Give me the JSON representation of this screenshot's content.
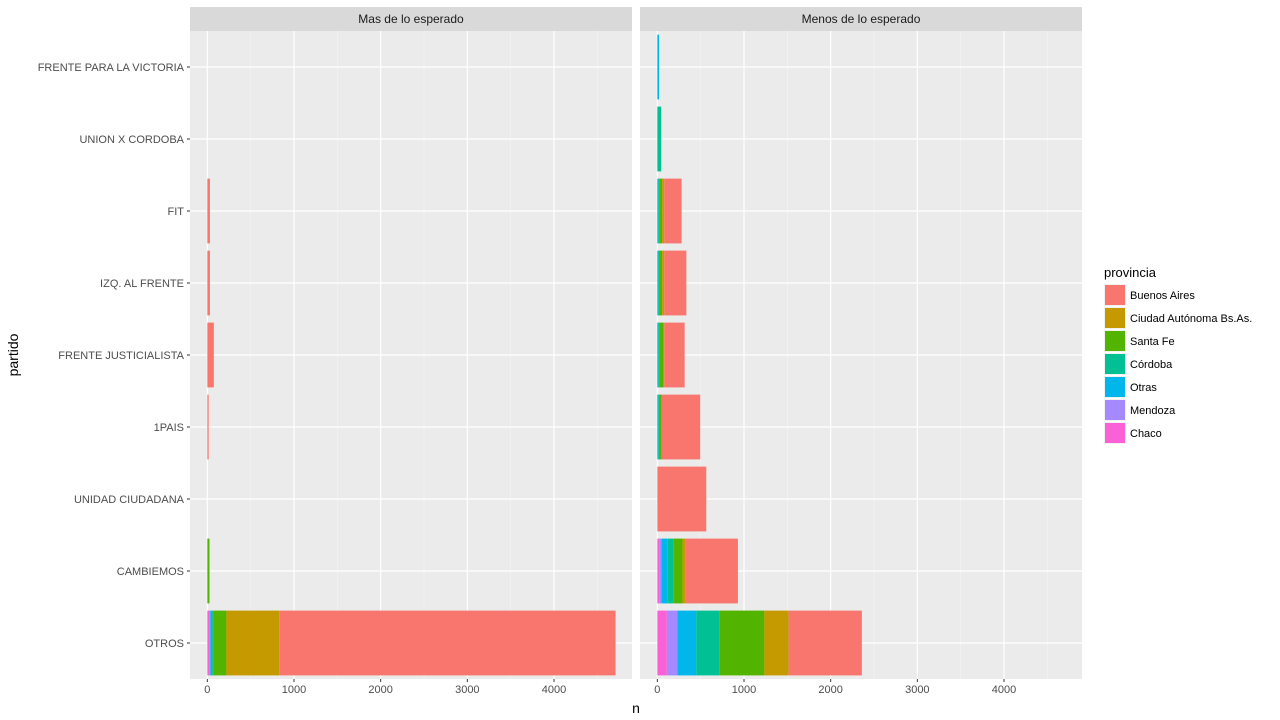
{
  "chart_data": {
    "type": "bar",
    "orientation": "horizontal",
    "stacked": true,
    "xlabel": "n",
    "ylabel": "partido",
    "xlim": [
      -200,
      4900
    ],
    "xticks": [
      0,
      1000,
      2000,
      3000,
      4000
    ],
    "grid": true,
    "legend": {
      "title": "provincia",
      "position": "right"
    },
    "categories": [
      "FRENTE PARA LA VICTORIA",
      "UNION X CORDOBA",
      "FIT",
      "IZQ. AL FRENTE",
      "FRENTE JUSTICIALISTA",
      "1PAIS",
      "UNIDAD CIUDADANA",
      "CAMBIEMOS",
      "OTROS"
    ],
    "series_names": [
      "Buenos Aires",
      "Ciudad Autónoma Bs.As.",
      "Santa Fe",
      "Córdoba",
      "Otras",
      "Mendoza",
      "Chaco"
    ],
    "colors": {
      "Buenos Aires": "#F8766D",
      "Ciudad Autónoma Bs.As.": "#C49A00",
      "Santa Fe": "#53B400",
      "Córdoba": "#00C094",
      "Otras": "#00B6EB",
      "Mendoza": "#A58AFF",
      "Chaco": "#FB61D7"
    },
    "panels": [
      {
        "name": "Mas de lo esperado",
        "stacks": {
          "FRENTE PARA LA VICTORIA": {},
          "UNION X CORDOBA": {},
          "FIT": {
            "Buenos Aires": 30
          },
          "IZQ. AL FRENTE": {
            "Buenos Aires": 30
          },
          "FRENTE JUSTICIALISTA": {
            "Buenos Aires": 75
          },
          "1PAIS": {
            "Buenos Aires": 15
          },
          "UNIDAD CIUDADANA": {},
          "CAMBIEMOS": {
            "Santa Fe": 25
          },
          "OTROS": {
            "Chaco": 20,
            "Mendoza": 15,
            "Otras": 20,
            "Córdoba": 15,
            "Santa Fe": 150,
            "Ciudad Autónoma Bs.As.": 610,
            "Buenos Aires": 3880
          }
        }
      },
      {
        "name": "Menos de lo esperado",
        "stacks": {
          "FRENTE PARA LA VICTORIA": {
            "Otras": 20
          },
          "UNION X CORDOBA": {
            "Córdoba": 45
          },
          "FIT": {
            "Córdoba": 15,
            "Otras": 15,
            "Santa Fe": 25,
            "Ciudad Autónoma Bs.As.": 25,
            "Buenos Aires": 200
          },
          "IZQ. AL FRENTE": {
            "Córdoba": 15,
            "Otras": 10,
            "Santa Fe": 30,
            "Ciudad Autónoma Bs.As.": 25,
            "Buenos Aires": 255
          },
          "FRENTE JUSTICIALISTA": {
            "Córdoba": 15,
            "Otras": 15,
            "Santa Fe": 40,
            "Ciudad Autónoma Bs.As.": 10,
            "Buenos Aires": 235
          },
          "1PAIS": {
            "Córdoba": 15,
            "Otras": 10,
            "Santa Fe": 25,
            "Buenos Aires": 445
          },
          "UNIDAD CIUDADANA": {
            "Buenos Aires": 565
          },
          "CAMBIEMOS": {
            "Chaco": 20,
            "Mendoza": 25,
            "Otras": 75,
            "Córdoba": 70,
            "Santa Fe": 100,
            "Ciudad Autónoma Bs.As.": 30,
            "Buenos Aires": 610
          },
          "OTROS": {
            "Chaco": 110,
            "Mendoza": 120,
            "Otras": 220,
            "Córdoba": 270,
            "Santa Fe": 515,
            "Ciudad Autónoma Bs.As.": 280,
            "Buenos Aires": 845
          }
        }
      }
    ]
  }
}
